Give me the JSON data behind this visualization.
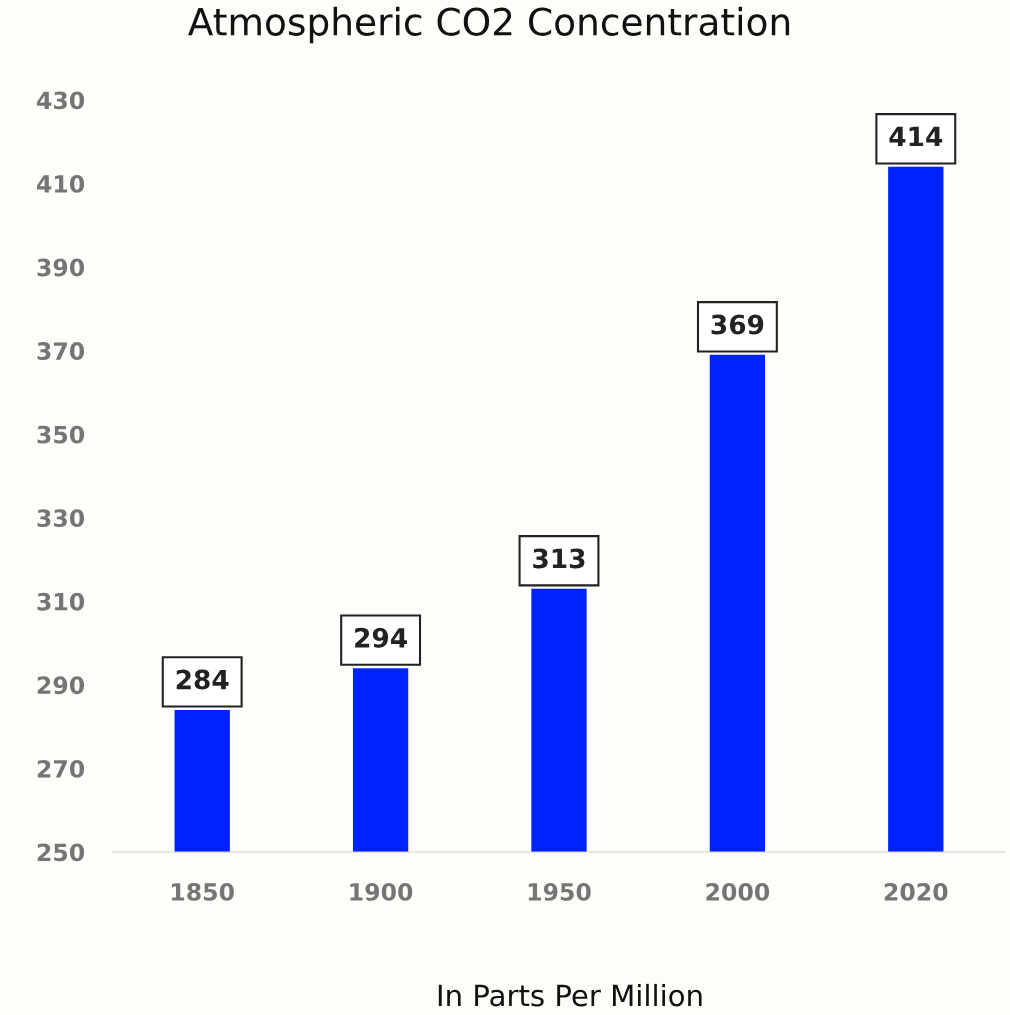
{
  "chart_data": {
    "type": "bar",
    "title": "Atmospheric CO2 Concentration",
    "xlabel": "In Parts Per Million",
    "categories": [
      "1850",
      "1900",
      "1950",
      "2000",
      "2020"
    ],
    "values": [
      284,
      294,
      313,
      369,
      414
    ],
    "color": "#0022ff",
    "ylim": [
      250,
      430
    ],
    "yticks": [
      250,
      270,
      290,
      310,
      330,
      350,
      370,
      390,
      410,
      430
    ],
    "grid": false,
    "data_labels": true
  }
}
